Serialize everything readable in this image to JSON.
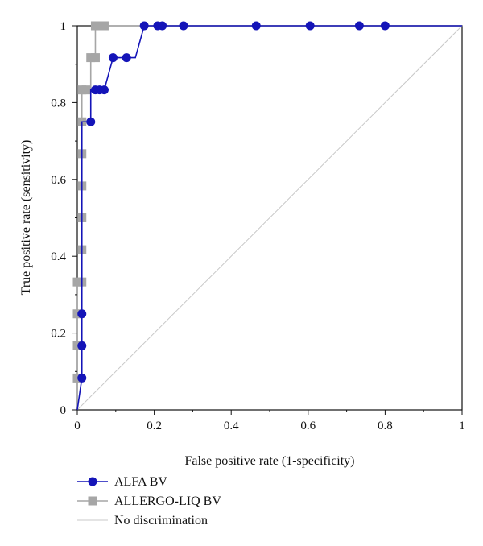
{
  "chart_data": {
    "type": "line",
    "xlabel": "False positive rate (1-specificity)",
    "ylabel": "True positive rate (sensitivity)",
    "xlim": [
      0,
      1
    ],
    "ylim": [
      0,
      1
    ],
    "x_ticks": [
      {
        "value": 0,
        "label": "0"
      },
      {
        "value": 0.2,
        "label": "0.2"
      },
      {
        "value": 0.4,
        "label": "0.4"
      },
      {
        "value": 0.6,
        "label": "0.6"
      },
      {
        "value": 0.8,
        "label": "0.8"
      },
      {
        "value": 1,
        "label": "1"
      }
    ],
    "y_ticks": [
      {
        "value": 0,
        "label": "0"
      },
      {
        "value": 0.2,
        "label": "0.2"
      },
      {
        "value": 0.4,
        "label": "0.4"
      },
      {
        "value": 0.6,
        "label": "0.6"
      },
      {
        "value": 0.8,
        "label": "0.8"
      },
      {
        "value": 1,
        "label": "1"
      }
    ],
    "grid": false,
    "legend_position": "bottom-left",
    "series": [
      {
        "name": "ALFA BV",
        "color": "#1414b8",
        "marker": "circle",
        "points": [
          {
            "x": 0,
            "y": 0
          },
          {
            "x": 0.012,
            "y": 0.083
          },
          {
            "x": 0.012,
            "y": 0.167
          },
          {
            "x": 0.012,
            "y": 0.25
          },
          {
            "x": 0.012,
            "y": 0.333
          },
          {
            "x": 0.012,
            "y": 0.417
          },
          {
            "x": 0.012,
            "y": 0.5
          },
          {
            "x": 0.012,
            "y": 0.583
          },
          {
            "x": 0.012,
            "y": 0.667
          },
          {
            "x": 0.012,
            "y": 0.75
          },
          {
            "x": 0.035,
            "y": 0.75
          },
          {
            "x": 0.035,
            "y": 0.833
          },
          {
            "x": 0.047,
            "y": 0.833
          },
          {
            "x": 0.058,
            "y": 0.833
          },
          {
            "x": 0.07,
            "y": 0.833
          },
          {
            "x": 0.093,
            "y": 0.917
          },
          {
            "x": 0.128,
            "y": 0.917
          },
          {
            "x": 0.151,
            "y": 0.917
          },
          {
            "x": 0.174,
            "y": 1
          },
          {
            "x": 0.209,
            "y": 1
          },
          {
            "x": 0.221,
            "y": 1
          },
          {
            "x": 0.276,
            "y": 1
          },
          {
            "x": 0.465,
            "y": 1
          },
          {
            "x": 0.605,
            "y": 1
          },
          {
            "x": 0.733,
            "y": 1
          },
          {
            "x": 0.8,
            "y": 1
          },
          {
            "x": 1,
            "y": 1
          }
        ],
        "marker_points": [
          {
            "x": 0.012,
            "y": 0.083
          },
          {
            "x": 0.012,
            "y": 0.167
          },
          {
            "x": 0.012,
            "y": 0.25
          },
          {
            "x": 0.035,
            "y": 0.75
          },
          {
            "x": 0.047,
            "y": 0.833
          },
          {
            "x": 0.058,
            "y": 0.833
          },
          {
            "x": 0.07,
            "y": 0.833
          },
          {
            "x": 0.093,
            "y": 0.917
          },
          {
            "x": 0.128,
            "y": 0.917
          },
          {
            "x": 0.174,
            "y": 1
          },
          {
            "x": 0.209,
            "y": 1
          },
          {
            "x": 0.221,
            "y": 1
          },
          {
            "x": 0.276,
            "y": 1
          },
          {
            "x": 0.465,
            "y": 1
          },
          {
            "x": 0.605,
            "y": 1
          },
          {
            "x": 0.733,
            "y": 1
          },
          {
            "x": 0.8,
            "y": 1
          }
        ]
      },
      {
        "name": "ALLERGO-LIQ BV",
        "color": "#a6a6a6",
        "marker": "square",
        "points": [
          {
            "x": 0,
            "y": 0
          },
          {
            "x": 0,
            "y": 0.083
          },
          {
            "x": 0,
            "y": 0.167
          },
          {
            "x": 0,
            "y": 0.25
          },
          {
            "x": 0,
            "y": 0.333
          },
          {
            "x": 0.012,
            "y": 0.333
          },
          {
            "x": 0.012,
            "y": 0.417
          },
          {
            "x": 0.012,
            "y": 0.5
          },
          {
            "x": 0.012,
            "y": 0.583
          },
          {
            "x": 0.012,
            "y": 0.667
          },
          {
            "x": 0.012,
            "y": 0.75
          },
          {
            "x": 0.012,
            "y": 0.833
          },
          {
            "x": 0.035,
            "y": 0.833
          },
          {
            "x": 0.035,
            "y": 0.917
          },
          {
            "x": 0.047,
            "y": 0.917
          },
          {
            "x": 0.047,
            "y": 1
          },
          {
            "x": 0.07,
            "y": 1
          },
          {
            "x": 1,
            "y": 1
          }
        ],
        "marker_points": [
          {
            "x": 0,
            "y": 0.083
          },
          {
            "x": 0,
            "y": 0.167
          },
          {
            "x": 0,
            "y": 0.25
          },
          {
            "x": 0,
            "y": 0.333
          },
          {
            "x": 0.012,
            "y": 0.333
          },
          {
            "x": 0.012,
            "y": 0.417
          },
          {
            "x": 0.012,
            "y": 0.5
          },
          {
            "x": 0.012,
            "y": 0.583
          },
          {
            "x": 0.012,
            "y": 0.667
          },
          {
            "x": 0.012,
            "y": 0.75
          },
          {
            "x": 0.012,
            "y": 0.833
          },
          {
            "x": 0.023,
            "y": 0.833
          },
          {
            "x": 0.035,
            "y": 0.917
          },
          {
            "x": 0.047,
            "y": 0.917
          },
          {
            "x": 0.047,
            "y": 1
          },
          {
            "x": 0.058,
            "y": 1
          },
          {
            "x": 0.07,
            "y": 1
          }
        ]
      },
      {
        "name": "No discrimination",
        "color": "#c8c8c8",
        "marker": "none",
        "points": [
          {
            "x": 0,
            "y": 0
          },
          {
            "x": 1,
            "y": 1
          }
        ],
        "marker_points": []
      }
    ]
  }
}
